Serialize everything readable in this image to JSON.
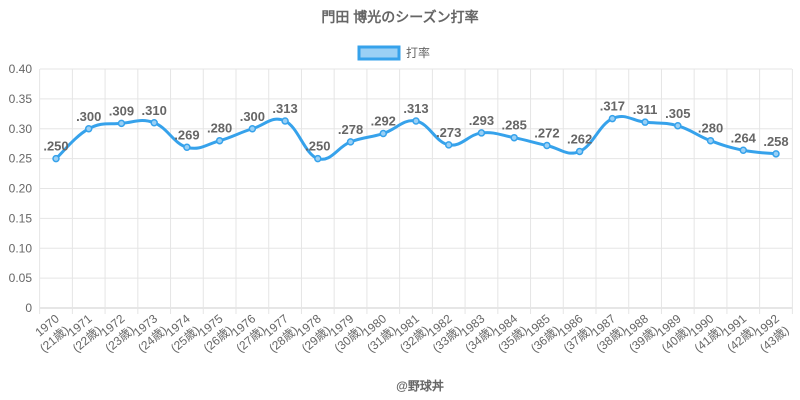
{
  "chart_data": {
    "type": "line",
    "title": "門田 博光のシーズン打率",
    "legend": {
      "label": "打率",
      "position": "top"
    },
    "credit": "@野球丼",
    "colors": {
      "line": "#36A2EB",
      "fill": "#9AD0F5",
      "grid": "#e5e5e5",
      "text": "#666666"
    },
    "ylim": [
      0,
      0.4
    ],
    "yticks": [
      "0",
      "0.05",
      "0.10",
      "0.15",
      "0.20",
      "0.25",
      "0.30",
      "0.35",
      "0.40"
    ],
    "grid": true,
    "categories": [
      [
        "1970",
        "(21歳)"
      ],
      [
        "1971",
        "(22歳)"
      ],
      [
        "1972",
        "(23歳)"
      ],
      [
        "1973",
        "(24歳)"
      ],
      [
        "1974",
        "(25歳)"
      ],
      [
        "1975",
        "(26歳)"
      ],
      [
        "1976",
        "(27歳)"
      ],
      [
        "1977",
        "(28歳)"
      ],
      [
        "1978",
        "(29歳)"
      ],
      [
        "1979",
        "(30歳)"
      ],
      [
        "1980",
        "(31歳)"
      ],
      [
        "1981",
        "(32歳)"
      ],
      [
        "1982",
        "(33歳)"
      ],
      [
        "1983",
        "(34歳)"
      ],
      [
        "1984",
        "(35歳)"
      ],
      [
        "1985",
        "(36歳)"
      ],
      [
        "1986",
        "(37歳)"
      ],
      [
        "1987",
        "(38歳)"
      ],
      [
        "1988",
        "(39歳)"
      ],
      [
        "1989",
        "(40歳)"
      ],
      [
        "1990",
        "(41歳)"
      ],
      [
        "1991",
        "(42歳)"
      ],
      [
        "1992",
        "(43歳)"
      ]
    ],
    "series": [
      {
        "name": "打率",
        "values": [
          0.25,
          0.3,
          0.309,
          0.31,
          0.269,
          0.28,
          0.3,
          0.313,
          0.25,
          0.278,
          0.292,
          0.313,
          0.273,
          0.293,
          0.285,
          0.272,
          0.262,
          0.317,
          0.311,
          0.305,
          0.28,
          0.264,
          0.258
        ],
        "labels": [
          ".250",
          ".300",
          ".309",
          ".310",
          ".269",
          ".280",
          ".300",
          ".313",
          ".250",
          ".278",
          ".292",
          ".313",
          ".273",
          ".293",
          ".285",
          ".272",
          ".262",
          ".317",
          ".311",
          ".305",
          ".280",
          ".264",
          ".258"
        ]
      }
    ]
  }
}
